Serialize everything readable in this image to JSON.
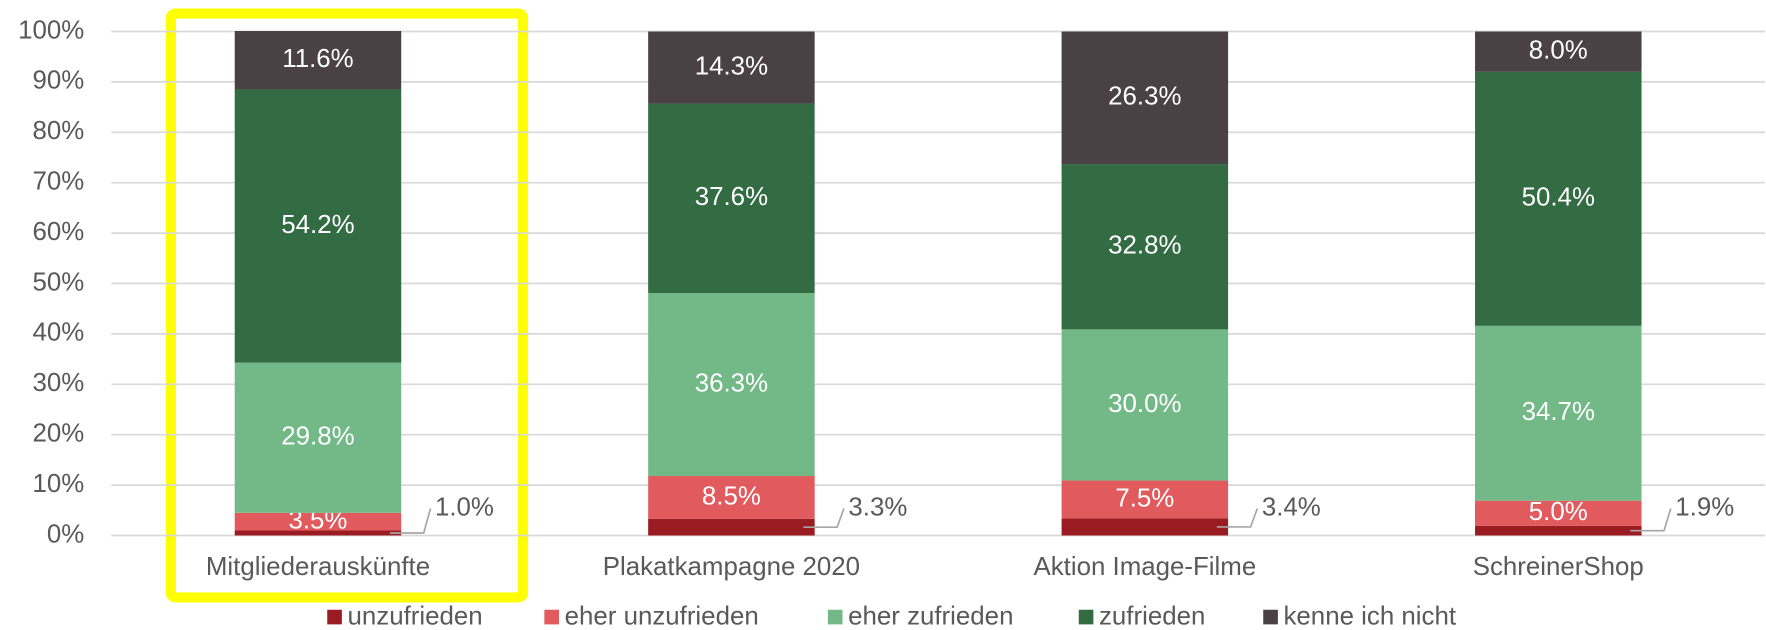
{
  "chart_data": {
    "type": "stacked_bar",
    "categories": [
      "Mitgliederauskünfte",
      "Plakatkampagne 2020",
      "Aktion Image-Filme",
      "SchreinerShop"
    ],
    "series": [
      {
        "name": "unzufrieden",
        "color": "#9b1b23",
        "values": [
          1.0,
          3.3,
          3.4,
          1.9
        ],
        "value_labels": [
          "1.0%",
          "3.3%",
          "3.4%",
          "1.9%"
        ]
      },
      {
        "name": "eher unzufrieden",
        "color": "#e05a5e",
        "values": [
          3.5,
          8.5,
          7.5,
          5.0
        ],
        "value_labels": [
          "3.5%",
          "8.5%",
          "7.5%",
          "5.0%"
        ]
      },
      {
        "name": "eher zufrieden",
        "color": "#72b987",
        "values": [
          29.8,
          36.3,
          30.0,
          34.7
        ],
        "value_labels": [
          "29.8%",
          "36.3%",
          "30.0%",
          "34.7%"
        ]
      },
      {
        "name": "zufrieden",
        "color": "#336b43",
        "values": [
          54.2,
          37.6,
          32.8,
          50.4
        ],
        "value_labels": [
          "54.2%",
          "37.6%",
          "32.8%",
          "50.4%"
        ]
      },
      {
        "name": "kenne ich nicht",
        "color": "#4a4145",
        "values": [
          11.6,
          14.3,
          26.3,
          8.0
        ],
        "value_labels": [
          "11.6%",
          "14.3%",
          "26.3%",
          "8.0%"
        ]
      }
    ],
    "ylim": [
      0,
      100
    ],
    "yticks": [
      {
        "value": 0,
        "label": "0%"
      },
      {
        "value": 10,
        "label": "10%"
      },
      {
        "value": 20,
        "label": "20%"
      },
      {
        "value": 30,
        "label": "30%"
      },
      {
        "value": 40,
        "label": "40%"
      },
      {
        "value": 50,
        "label": "50%"
      },
      {
        "value": 60,
        "label": "60%"
      },
      {
        "value": 70,
        "label": "70%"
      },
      {
        "value": 80,
        "label": "80%"
      },
      {
        "value": 90,
        "label": "90%"
      },
      {
        "value": 100,
        "label": "100%"
      }
    ],
    "grid": true,
    "legend": "bottom"
  }
}
